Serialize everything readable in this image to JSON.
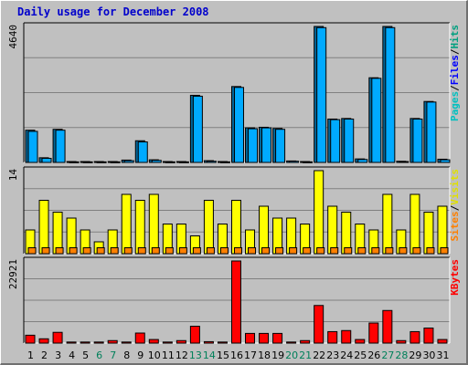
{
  "page": {
    "title": "Daily usage for December 2008"
  },
  "chart_data": [
    {
      "type": "bar",
      "panel": "pages-files-hits",
      "categories": [
        "1",
        "2",
        "3",
        "4",
        "5",
        "6",
        "7",
        "8",
        "9",
        "10",
        "11",
        "12",
        "13",
        "14",
        "15",
        "16",
        "17",
        "18",
        "19",
        "20",
        "21",
        "22",
        "23",
        "24",
        "25",
        "26",
        "27",
        "28",
        "29",
        "30",
        "31"
      ],
      "weekend_days": [
        "6",
        "7",
        "13",
        "14",
        "20",
        "21",
        "27",
        "28"
      ],
      "ymax_label": "4640",
      "ylim": [
        0,
        4640
      ],
      "legend": [
        {
          "label": "Pages",
          "color": "#00c0c0"
        },
        {
          "label": "/",
          "color": "#000000"
        },
        {
          "label": "Files",
          "color": "#0000ff"
        },
        {
          "label": "/",
          "color": "#000000"
        },
        {
          "label": "Hits",
          "color": "#00a080"
        }
      ],
      "series": [
        {
          "name": "Hits",
          "color": "#006699",
          "values": [
            1100,
            160,
            1130,
            30,
            30,
            30,
            30,
            80,
            740,
            90,
            30,
            30,
            2290,
            60,
            30,
            2590,
            1180,
            1200,
            1160,
            50,
            30,
            4640,
            1480,
            1500,
            120,
            2890,
            4640,
            40,
            1500,
            2080,
            110
          ]
        },
        {
          "name": "Files",
          "color": "#00aaff",
          "values": [
            1060,
            140,
            1100,
            20,
            20,
            20,
            20,
            60,
            700,
            70,
            20,
            20,
            2260,
            40,
            20,
            2560,
            1150,
            1180,
            1130,
            40,
            20,
            4600,
            1460,
            1480,
            100,
            2870,
            4600,
            30,
            1480,
            2060,
            90
          ]
        },
        {
          "name": "Pages",
          "color": "#00c0c0",
          "values": [
            0,
            0,
            0,
            0,
            0,
            0,
            0,
            0,
            0,
            0,
            0,
            0,
            0,
            0,
            0,
            0,
            0,
            0,
            0,
            0,
            0,
            0,
            0,
            0,
            0,
            0,
            0,
            0,
            0,
            0,
            0
          ]
        }
      ]
    },
    {
      "type": "bar",
      "panel": "visits-sites",
      "categories": [
        "1",
        "2",
        "3",
        "4",
        "5",
        "6",
        "7",
        "8",
        "9",
        "10",
        "11",
        "12",
        "13",
        "14",
        "15",
        "16",
        "17",
        "18",
        "19",
        "20",
        "21",
        "22",
        "23",
        "24",
        "25",
        "26",
        "27",
        "28",
        "29",
        "30",
        "31"
      ],
      "ymax_label": "14",
      "ylim": [
        0,
        14
      ],
      "legend": [
        {
          "label": "Sites",
          "color": "#ff8000"
        },
        {
          "label": "/",
          "color": "#000000"
        },
        {
          "label": "Visits",
          "color": "#e0e000"
        }
      ],
      "series": [
        {
          "name": "Visits",
          "color": "#ffff00",
          "values": [
            4,
            9,
            7,
            6,
            4,
            2,
            4,
            10,
            9,
            10,
            5,
            5,
            3,
            9,
            5,
            9,
            4,
            8,
            6,
            6,
            5,
            14,
            8,
            7,
            5,
            4,
            10,
            4,
            10,
            7,
            8
          ]
        },
        {
          "name": "Sites",
          "color": "#ff8000",
          "values": [
            1,
            1,
            1,
            1,
            1,
            1,
            1,
            1,
            1,
            1,
            1,
            1,
            1,
            1,
            1,
            1,
            1,
            1,
            1,
            1,
            1,
            1,
            1,
            1,
            1,
            1,
            1,
            1,
            1,
            1,
            1
          ]
        }
      ]
    },
    {
      "type": "bar",
      "panel": "kbytes",
      "categories": [
        "1",
        "2",
        "3",
        "4",
        "5",
        "6",
        "7",
        "8",
        "9",
        "10",
        "11",
        "12",
        "13",
        "14",
        "15",
        "16",
        "17",
        "18",
        "19",
        "20",
        "21",
        "22",
        "23",
        "24",
        "25",
        "26",
        "27",
        "28",
        "29",
        "30",
        "31"
      ],
      "ymax_label": "22921",
      "ylim": [
        0,
        22921
      ],
      "legend": [
        {
          "label": "KBytes",
          "color": "#ff0000"
        }
      ],
      "series": [
        {
          "name": "KBytes",
          "color": "#ff0000",
          "values": [
            2200,
            1200,
            3000,
            300,
            300,
            300,
            700,
            300,
            2800,
            1000,
            300,
            700,
            4700,
            400,
            300,
            22921,
            2700,
            2700,
            2700,
            300,
            700,
            10500,
            3200,
            3500,
            1000,
            5600,
            9100,
            700,
            3200,
            4200,
            1000
          ]
        }
      ]
    }
  ]
}
